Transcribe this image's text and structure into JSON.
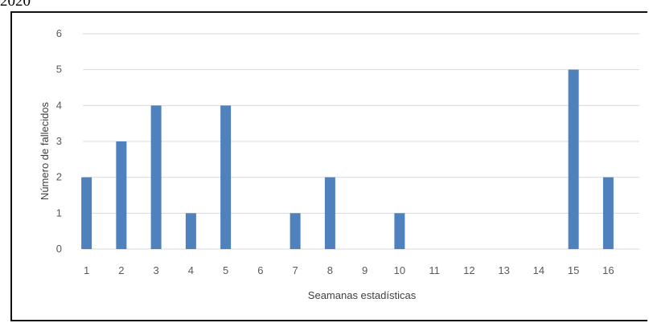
{
  "caption": "2020",
  "chart_data": {
    "type": "bar",
    "title": "",
    "xlabel": "Seamanas estadísticas",
    "ylabel": "Número de fallecidos",
    "categories": [
      "1",
      "2",
      "3",
      "4",
      "5",
      "6",
      "7",
      "8",
      "9",
      "10",
      "11",
      "12",
      "13",
      "14",
      "15",
      "16"
    ],
    "values": [
      2,
      3,
      4,
      1,
      4,
      0,
      1,
      2,
      0,
      1,
      0,
      0,
      0,
      0,
      5,
      2
    ],
    "ylim": [
      0,
      6
    ],
    "yticks": [
      "0",
      "1",
      "2",
      "3",
      "4",
      "5",
      "6"
    ],
    "grid": true,
    "legend": "none",
    "bar_color": "#4f81bd",
    "grid_color": "#d9d9d9"
  }
}
